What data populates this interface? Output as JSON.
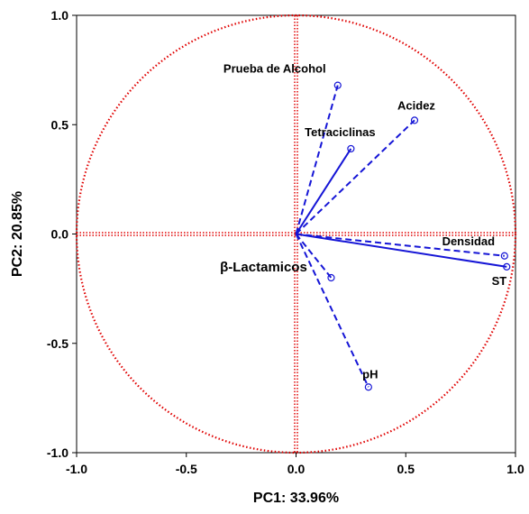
{
  "chart_data": {
    "type": "scatter",
    "title": "",
    "xlabel": "PC1: 33.96%",
    "ylabel": "PC2: 20.85%",
    "xlim": [
      -1.0,
      1.0
    ],
    "ylim": [
      -1.0,
      1.0
    ],
    "x_ticks": [
      "-1.0",
      "-0.5",
      "0.0",
      "0.5",
      "1.0"
    ],
    "y_ticks": [
      "1.0",
      "0.5",
      "0.0",
      "-0.5",
      "-1.0"
    ],
    "grid": false,
    "correlation_circle": true,
    "vectors": [
      {
        "name": "Prueba de Alcohol",
        "x": 0.19,
        "y": 0.68,
        "line": "dashed"
      },
      {
        "name": "Acidez",
        "x": 0.54,
        "y": 0.52,
        "line": "dashed"
      },
      {
        "name": "Tetraciclinas",
        "x": 0.25,
        "y": 0.39,
        "line": "solid"
      },
      {
        "name": "Densidad",
        "x": 0.95,
        "y": -0.1,
        "line": "dashed"
      },
      {
        "name": "ST",
        "x": 0.96,
        "y": -0.15,
        "line": "solid"
      },
      {
        "name": "β-Lactamicos",
        "x": 0.16,
        "y": -0.2,
        "line": "dashed"
      },
      {
        "name": "pH",
        "x": 0.33,
        "y": -0.7,
        "line": "dashed"
      }
    ],
    "colors": {
      "vectors": "#1515d6",
      "reference": "#e00000",
      "frame": "#000000"
    }
  }
}
